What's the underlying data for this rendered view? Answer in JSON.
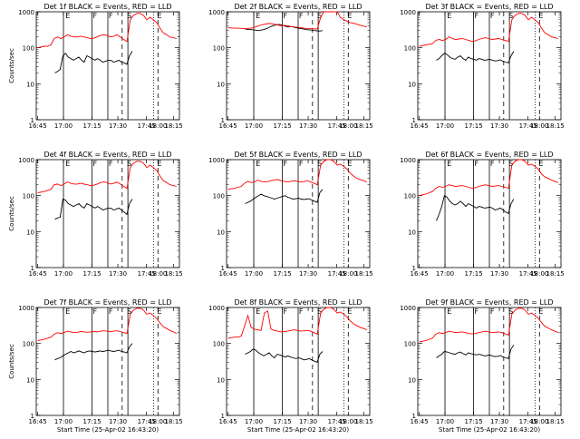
{
  "chart_data": [
    {
      "type": "line",
      "title": "Det 1f BLACK = Events, RED = LLD",
      "ylabel": "Counts/sec",
      "xlabel": "",
      "yscale": "log",
      "ylim": [
        1,
        1000
      ],
      "y_ticks": [
        "1",
        "10",
        "100",
        "1000"
      ],
      "x_ticks": [
        "16:45",
        "17:00",
        "17:15",
        "17:30",
        "17:45",
        "18:00",
        "18:15"
      ],
      "interval_labels": [
        "E",
        "F",
        "F",
        "S",
        "E"
      ],
      "series": [
        {
          "color": "#000000",
          "values": [
            20,
            22,
            25,
            60,
            70,
            55,
            50,
            45,
            50,
            55,
            45,
            40,
            60,
            55,
            50,
            45,
            50,
            45,
            40,
            42,
            45,
            45,
            40,
            42,
            45,
            40,
            38,
            35,
            60,
            80
          ]
        },
        {
          "color": "#ff0000",
          "values": [
            100,
            105,
            110,
            110,
            120,
            180,
            200,
            180,
            200,
            230,
            210,
            200,
            200,
            210,
            200,
            190,
            180,
            185,
            200,
            220,
            230,
            220,
            200,
            210,
            230,
            200,
            170,
            150,
            600,
            800,
            900,
            900,
            800,
            600,
            700,
            600,
            500,
            350,
            260,
            230,
            200,
            190,
            180
          ]
        }
      ]
    },
    {
      "type": "line",
      "title": "Det 2f BLACK = Events, RED = LLD",
      "ylabel": "",
      "xlabel": "",
      "yscale": "log",
      "ylim": [
        1,
        1000
      ],
      "y_ticks": [
        "1",
        "10",
        "100",
        "1000"
      ],
      "x_ticks": [
        "16:45",
        "17:00",
        "17:15",
        "17:30",
        "17:45",
        "18:00",
        "18:15"
      ],
      "interval_labels": [
        "E",
        "F",
        "F",
        "S",
        "E"
      ],
      "series": [
        {
          "color": "#000000",
          "values": [
            330,
            325,
            320,
            315,
            310,
            300,
            310,
            320,
            340,
            370,
            400,
            420,
            440,
            440,
            420,
            400,
            380,
            390,
            380,
            360,
            350,
            340,
            330,
            320,
            315,
            310,
            300,
            295,
            290,
            300
          ]
        },
        {
          "color": "#ff0000",
          "values": [
            360,
            355,
            350,
            350,
            345,
            340,
            345,
            350,
            370,
            400,
            430,
            450,
            470,
            470,
            450,
            430,
            410,
            420,
            410,
            390,
            380,
            370,
            360,
            350,
            345,
            340,
            335,
            330,
            700,
            1000,
            1000,
            1000,
            1000,
            1000,
            700,
            600,
            550,
            500,
            480,
            450,
            420,
            400,
            380
          ]
        }
      ]
    },
    {
      "type": "line",
      "title": "Det 3f BLACK = Events, RED = LLD",
      "ylabel": "",
      "xlabel": "",
      "yscale": "log",
      "ylim": [
        1,
        1000
      ],
      "y_ticks": [
        "1",
        "10",
        "100",
        "1000"
      ],
      "x_ticks": [
        "16:45",
        "17:00",
        "17:15",
        "17:30",
        "17:45",
        "18:00",
        "18:15"
      ],
      "interval_labels": [
        "E",
        "F",
        "F",
        "S",
        "E"
      ],
      "series": [
        {
          "color": "#000000",
          "values": [
            45,
            50,
            60,
            70,
            65,
            55,
            50,
            48,
            55,
            60,
            50,
            45,
            55,
            50,
            48,
            45,
            50,
            48,
            45,
            46,
            48,
            45,
            43,
            44,
            46,
            42,
            40,
            38,
            60,
            80
          ]
        },
        {
          "color": "#ff0000",
          "values": [
            110,
            115,
            120,
            125,
            130,
            160,
            170,
            160,
            170,
            200,
            180,
            170,
            175,
            180,
            170,
            160,
            150,
            155,
            170,
            180,
            190,
            180,
            170,
            175,
            180,
            170,
            160,
            150,
            600,
            800,
            900,
            900,
            800,
            600,
            700,
            600,
            500,
            350,
            260,
            230,
            200,
            190,
            180
          ]
        }
      ]
    },
    {
      "type": "line",
      "title": "Det 4f BLACK = Events, RED = LLD",
      "ylabel": "Counts/sec",
      "xlabel": "",
      "yscale": "log",
      "ylim": [
        1,
        1000
      ],
      "y_ticks": [
        "1",
        "10",
        "100",
        "1000"
      ],
      "x_ticks": [
        "16:45",
        "17:00",
        "17:15",
        "17:30",
        "17:45",
        "18:00",
        "18:15"
      ],
      "interval_labels": [
        "E",
        "F",
        "F",
        "S",
        "E"
      ],
      "series": [
        {
          "color": "#000000",
          "values": [
            22,
            24,
            25,
            80,
            75,
            60,
            55,
            50,
            55,
            60,
            50,
            45,
            60,
            55,
            50,
            45,
            50,
            45,
            40,
            42,
            45,
            45,
            40,
            42,
            45,
            40,
            35,
            30,
            60,
            80
          ]
        },
        {
          "color": "#ff0000",
          "values": [
            120,
            125,
            130,
            140,
            150,
            200,
            210,
            190,
            210,
            240,
            220,
            210,
            210,
            220,
            210,
            200,
            190,
            195,
            210,
            230,
            240,
            230,
            210,
            220,
            240,
            210,
            180,
            160,
            600,
            800,
            900,
            900,
            800,
            600,
            700,
            600,
            500,
            350,
            260,
            230,
            200,
            190,
            180
          ]
        }
      ]
    },
    {
      "type": "line",
      "title": "Det 5f BLACK = Events, RED = LLD",
      "ylabel": "",
      "xlabel": "",
      "yscale": "log",
      "ylim": [
        1,
        1000
      ],
      "y_ticks": [
        "1",
        "10",
        "100",
        "1000"
      ],
      "x_ticks": [
        "16:45",
        "17:00",
        "17:15",
        "17:30",
        "17:45",
        "18:00",
        "18:15"
      ],
      "interval_labels": [
        "E",
        "F",
        "F",
        "S",
        "E"
      ],
      "series": [
        {
          "color": "#000000",
          "values": [
            60,
            65,
            70,
            80,
            90,
            100,
            110,
            100,
            95,
            90,
            85,
            80,
            85,
            90,
            95,
            100,
            90,
            85,
            80,
            82,
            85,
            80,
            78,
            80,
            82,
            75,
            70,
            65,
            120,
            150
          ]
        },
        {
          "color": "#ff0000",
          "values": [
            150,
            155,
            160,
            170,
            180,
            220,
            250,
            230,
            240,
            270,
            250,
            240,
            245,
            260,
            270,
            280,
            260,
            250,
            240,
            250,
            260,
            250,
            240,
            245,
            260,
            240,
            220,
            200,
            700,
            900,
            1000,
            1000,
            900,
            700,
            750,
            650,
            550,
            420,
            350,
            300,
            280,
            260,
            240
          ]
        }
      ]
    },
    {
      "type": "line",
      "title": "Det 6f BLACK = Events, RED = LLD",
      "ylabel": "",
      "xlabel": "",
      "yscale": "log",
      "ylim": [
        1,
        1000
      ],
      "y_ticks": [
        "1",
        "10",
        "100",
        "1000"
      ],
      "x_ticks": [
        "16:45",
        "17:00",
        "17:15",
        "17:30",
        "17:45",
        "18:00",
        "18:15"
      ],
      "interval_labels": [
        "E",
        "F",
        "F",
        "S",
        "E"
      ],
      "series": [
        {
          "color": "#000000",
          "values": [
            20,
            30,
            50,
            100,
            90,
            70,
            60,
            55,
            60,
            70,
            60,
            50,
            60,
            55,
            50,
            45,
            50,
            48,
            45,
            46,
            48,
            45,
            40,
            42,
            45,
            40,
            35,
            32,
            60,
            80
          ]
        },
        {
          "color": "#ff0000",
          "values": [
            100,
            105,
            110,
            120,
            130,
            160,
            180,
            170,
            180,
            200,
            190,
            180,
            185,
            190,
            180,
            170,
            160,
            165,
            180,
            190,
            200,
            190,
            180,
            185,
            190,
            180,
            170,
            160,
            700,
            900,
            1000,
            1000,
            900,
            700,
            750,
            650,
            550,
            400,
            330,
            300,
            270,
            250,
            230
          ]
        }
      ]
    },
    {
      "type": "line",
      "title": "Det 7f BLACK = Events, RED = LLD",
      "ylabel": "Counts/sec",
      "xlabel": "Start Time (25-Apr-02 16:43:20)",
      "yscale": "log",
      "ylim": [
        1,
        1000
      ],
      "y_ticks": [
        "1",
        "10",
        "100",
        "1000"
      ],
      "x_ticks": [
        "16:45",
        "17:00",
        "17:15",
        "17:30",
        "17:45",
        "18:00",
        "18:15"
      ],
      "interval_labels": [
        "E",
        "F",
        "F",
        "S",
        "E"
      ],
      "series": [
        {
          "color": "#000000",
          "values": [
            35,
            38,
            40,
            45,
            50,
            55,
            60,
            55,
            58,
            62,
            58,
            55,
            60,
            62,
            60,
            58,
            60,
            62,
            60,
            62,
            65,
            62,
            60,
            62,
            65,
            60,
            58,
            55,
            80,
            100
          ]
        },
        {
          "color": "#ff0000",
          "values": [
            120,
            125,
            130,
            140,
            150,
            180,
            200,
            190,
            200,
            220,
            210,
            200,
            205,
            215,
            210,
            205,
            210,
            215,
            210,
            220,
            225,
            220,
            215,
            220,
            225,
            215,
            200,
            190,
            650,
            850,
            950,
            950,
            850,
            650,
            700,
            600,
            500,
            370,
            290,
            260,
            230,
            210,
            190
          ]
        }
      ]
    },
    {
      "type": "line",
      "title": "Det 8f BLACK = Events, RED = LLD",
      "ylabel": "",
      "xlabel": "Start Time (25-Apr-02 16:43:20)",
      "yscale": "log",
      "ylim": [
        1,
        1000
      ],
      "y_ticks": [
        "1",
        "10",
        "100",
        "1000"
      ],
      "x_ticks": [
        "16:45",
        "17:00",
        "17:15",
        "17:30",
        "17:45",
        "18:00",
        "18:15"
      ],
      "interval_labels": [
        "E",
        "F",
        "F",
        "S",
        "E"
      ],
      "series": [
        {
          "color": "#000000",
          "values": [
            50,
            55,
            60,
            70,
            65,
            55,
            50,
            45,
            50,
            55,
            45,
            40,
            50,
            48,
            45,
            42,
            45,
            42,
            40,
            38,
            40,
            38,
            35,
            36,
            38,
            35,
            32,
            30,
            50,
            60
          ]
        },
        {
          "color": "#ff0000",
          "values": [
            140,
            145,
            150,
            150,
            160,
            300,
            600,
            280,
            250,
            240,
            230,
            700,
            800,
            250,
            230,
            220,
            210,
            215,
            220,
            230,
            240,
            230,
            220,
            225,
            230,
            220,
            200,
            180,
            700,
            900,
            1000,
            1000,
            900,
            700,
            750,
            650,
            550,
            420,
            350,
            310,
            280,
            260,
            240
          ]
        }
      ]
    },
    {
      "type": "line",
      "title": "Det 9f BLACK = Events, RED = LLD",
      "ylabel": "",
      "xlabel": "Start Time (25-Apr-02 16:43:20)",
      "yscale": "log",
      "ylim": [
        1,
        1000
      ],
      "y_ticks": [
        "1",
        "10",
        "100",
        "1000"
      ],
      "x_ticks": [
        "16:45",
        "17:00",
        "17:15",
        "17:30",
        "17:45",
        "18:00",
        "18:15"
      ],
      "interval_labels": [
        "E",
        "F",
        "F",
        "S",
        "E"
      ],
      "series": [
        {
          "color": "#000000",
          "values": [
            40,
            45,
            50,
            60,
            58,
            55,
            52,
            50,
            55,
            58,
            52,
            48,
            55,
            52,
            50,
            48,
            50,
            48,
            45,
            46,
            48,
            45,
            43,
            44,
            46,
            42,
            40,
            38,
            70,
            90
          ]
        },
        {
          "color": "#ff0000",
          "values": [
            110,
            115,
            120,
            130,
            140,
            180,
            200,
            190,
            200,
            220,
            210,
            200,
            205,
            210,
            200,
            190,
            185,
            190,
            200,
            210,
            220,
            210,
            200,
            205,
            210,
            200,
            185,
            170,
            650,
            850,
            950,
            950,
            850,
            650,
            700,
            600,
            500,
            380,
            300,
            270,
            240,
            220,
            200
          ]
        }
      ]
    }
  ]
}
